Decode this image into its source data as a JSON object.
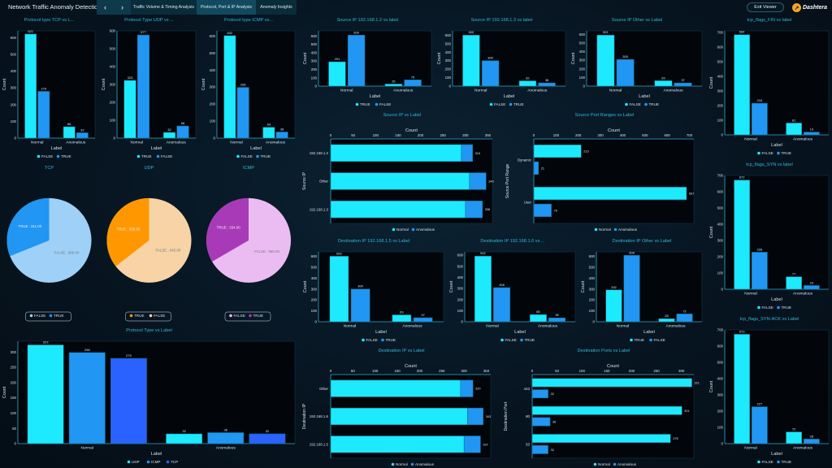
{
  "header": {
    "title": "Network Traffic Anomaly Detection",
    "nav_prev_icon": "chevron-left-icon",
    "nav_next_icon": "chevron-right-icon",
    "tabs": [
      {
        "label": "Traffic Volume & Timing Analysis",
        "active": false
      },
      {
        "label": "Protocol, Port & IP Analysis",
        "active": true
      },
      {
        "label": "Anomaly Insights",
        "active": false
      }
    ],
    "exit_label": "Exit Viewer",
    "logo_text": "Dashtera"
  },
  "colors": {
    "cyan": "#1de9ff",
    "blue": "#2196f3",
    "deep_blue": "#2962ff",
    "title": "#2fb8d6"
  },
  "chart_data": [
    {
      "id": "tcp",
      "type": "bar",
      "title": "Protocol type TCP vs L...",
      "xlabel": "Label",
      "ylabel": "Count",
      "categories": [
        "Normal",
        "Anomalous"
      ],
      "series": [
        {
          "name": "FALSE",
          "values": [
            621,
            68
          ],
          "color": "#1de9ff"
        },
        {
          "name": "TRUE",
          "values": [
            279,
            32
          ],
          "color": "#2196f3"
        }
      ],
      "ylim": [
        0,
        640
      ],
      "ytick_step": 100
    },
    {
      "id": "udp",
      "type": "bar",
      "title": "Protocol Type UDP vs ...",
      "xlabel": "Label",
      "ylabel": "Count",
      "categories": [
        "Normal",
        "Anomalous"
      ],
      "series": [
        {
          "name": "TRUE",
          "values": [
            323,
            32
          ],
          "color": "#1de9ff"
        },
        {
          "name": "FALSE",
          "values": [
            577,
            68
          ],
          "color": "#2196f3"
        }
      ],
      "ylim": [
        0,
        600
      ],
      "ytick_step": 100
    },
    {
      "id": "icmp",
      "type": "bar",
      "title": "Protocol type ICMP vs...",
      "xlabel": "Label",
      "ylabel": "Count",
      "categories": [
        "Normal",
        "Anomalous"
      ],
      "series": [
        {
          "name": "FALSE",
          "values": [
            602,
            64
          ],
          "color": "#1de9ff"
        },
        {
          "name": "TRUE",
          "values": [
            298,
            36
          ],
          "color": "#2196f3"
        }
      ],
      "ylim": [
        0,
        630
      ],
      "ytick_step": 100
    },
    {
      "id": "tcp_pie",
      "type": "pie",
      "title": "TCP",
      "slices": [
        {
          "name": "FALSE",
          "value": 689,
          "label": "FALSE : 689.00",
          "color": "#9fd0f7"
        },
        {
          "name": "TRUE",
          "value": 311,
          "label": "TRUE : 311.00",
          "color": "#2196f3"
        }
      ]
    },
    {
      "id": "udp_pie",
      "type": "pie",
      "title": "UDP",
      "slices": [
        {
          "name": "TRUE",
          "value": 355,
          "label": "TRUE : 355.00",
          "color": "#ff9800"
        },
        {
          "name": "FALSE",
          "value": 645,
          "label": "FALSE : 645.00",
          "color": "#f8d3a5"
        }
      ]
    },
    {
      "id": "icmp_pie",
      "type": "pie",
      "title": "ICMP",
      "slices": [
        {
          "name": "FALSE",
          "value": 666,
          "label": "FALSE : 666.00",
          "color": "#ebbcf2"
        },
        {
          "name": "TRUE",
          "value": 334,
          "label": "TRUE : 334.00",
          "color": "#a83ab8"
        }
      ]
    },
    {
      "id": "proto",
      "type": "bar",
      "title": "Protocol Type vs Label",
      "xlabel": "Label",
      "ylabel": "Count",
      "categories": [
        "Normal",
        "Anomalous"
      ],
      "series": [
        {
          "name": "UDP",
          "values": [
            323,
            32
          ],
          "color": "#1de9ff"
        },
        {
          "name": "ICMP",
          "values": [
            298,
            36
          ],
          "color": "#2196f3"
        },
        {
          "name": "TCP",
          "values": [
            279,
            32
          ],
          "color": "#2962ff"
        }
      ],
      "ylim": [
        0,
        335
      ],
      "ytick_step": 50
    },
    {
      "id": "src12",
      "type": "bar",
      "title": "Source IP 192.168.1.2 vs label",
      "xlabel": "Label",
      "ylabel": "Count",
      "categories": [
        "Normal",
        "Anomalous"
      ],
      "series": [
        {
          "name": "TRUE",
          "values": [
            291,
            25
          ],
          "color": "#1de9ff"
        },
        {
          "name": "FALSE",
          "values": [
            609,
            75
          ],
          "color": "#2196f3"
        }
      ],
      "ylim": [
        0,
        660
      ],
      "ytick_step": 100
    },
    {
      "id": "src13",
      "type": "bar",
      "title": "Source IP 192.168.1.3 vs label",
      "xlabel": "Label",
      "ylabel": "Count",
      "categories": [
        "Normal",
        "Anomalous"
      ],
      "series": [
        {
          "name": "FALSE",
          "values": [
            600,
            62
          ],
          "color": "#1de9ff"
        },
        {
          "name": "TRUE",
          "values": [
            300,
            38
          ],
          "color": "#2196f3"
        }
      ],
      "ylim": [
        0,
        650
      ],
      "ytick_step": 100
    },
    {
      "id": "srcother",
      "type": "bar",
      "title": "Source IP Other vs Label",
      "xlabel": "Label",
      "ylabel": "Count",
      "categories": [
        "Normal",
        "Anomalous"
      ],
      "series": [
        {
          "name": "FALSE",
          "values": [
            591,
            63
          ],
          "color": "#1de9ff"
        },
        {
          "name": "TRUE",
          "values": [
            309,
            37
          ],
          "color": "#2196f3"
        }
      ],
      "ylim": [
        0,
        640
      ],
      "ytick_step": 100
    },
    {
      "id": "srcip",
      "type": "hbar_stacked",
      "title": "Source IP vs Label",
      "xlabel": "Count",
      "ylabel": "Source IP",
      "categories": [
        "192.168.1.2",
        "Other",
        "192.168.1.3"
      ],
      "series": [
        {
          "name": "Normal",
          "values": [
            291,
            309,
            300
          ],
          "color": "#1de9ff"
        },
        {
          "name": "Anomalous",
          "values": [
            25,
            37,
            38
          ],
          "color": "#2196f3"
        }
      ],
      "totals": [
        "316",
        "346",
        "338"
      ],
      "xlim": [
        0,
        360
      ],
      "xtick_step": 50
    },
    {
      "id": "srcport",
      "type": "hbar",
      "title": "Source Port Ranges vs Label",
      "xlabel": "Count",
      "ylabel": "Source Port Range",
      "categories": [
        "Dynamic",
        "User"
      ],
      "series": [
        {
          "name": "Normal",
          "values": [
            213,
            687
          ],
          "color": "#1de9ff"
        },
        {
          "name": "Anomalous",
          "values": [
            21,
            79
          ],
          "color": "#2196f3"
        }
      ],
      "xlim": [
        0,
        720
      ],
      "xtick_step": 100
    },
    {
      "id": "dst15",
      "type": "bar",
      "title": "Destination IP 192.168.1.5 vs Label",
      "xlabel": "Label",
      "ylabel": "Count",
      "categories": [
        "Normal",
        "Anomalous"
      ],
      "series": [
        {
          "name": "FALSE",
          "values": [
            600,
            63
          ],
          "color": "#1de9ff"
        },
        {
          "name": "TRUE",
          "values": [
            300,
            37
          ],
          "color": "#2196f3"
        }
      ],
      "ylim": [
        0,
        640
      ],
      "ytick_step": 100
    },
    {
      "id": "dst16",
      "type": "bar",
      "title": "Destination IP 192.168.1.6 vs ...",
      "xlabel": "Label",
      "ylabel": "Count",
      "categories": [
        "Normal",
        "Anomalous"
      ],
      "series": [
        {
          "name": "FALSE",
          "values": [
            592,
            65
          ],
          "color": "#1de9ff"
        },
        {
          "name": "TRUE",
          "values": [
            308,
            35
          ],
          "color": "#2196f3"
        }
      ],
      "ylim": [
        0,
        630
      ],
      "ytick_step": 100
    },
    {
      "id": "dstother",
      "type": "bar",
      "title": "Destination IP Other vs Label",
      "xlabel": "Label",
      "ylabel": "Count",
      "categories": [
        "Normal",
        "Anomalous"
      ],
      "series": [
        {
          "name": "TRUE",
          "values": [
            292,
            28
          ],
          "color": "#1de9ff"
        },
        {
          "name": "FALSE",
          "values": [
            608,
            72
          ],
          "color": "#2196f3"
        }
      ],
      "ylim": [
        0,
        640
      ],
      "ytick_step": 100
    },
    {
      "id": "dstip",
      "type": "hbar_stacked",
      "title": "Destination IP vs Label",
      "xlabel": "Count",
      "ylabel": "Destination IP",
      "categories": [
        "Other",
        "192.168.1.6",
        "192.168.1.5"
      ],
      "series": [
        {
          "name": "Normal",
          "values": [
            292,
            308,
            300
          ],
          "color": "#1de9ff"
        },
        {
          "name": "Anomalous",
          "values": [
            28,
            35,
            37
          ],
          "color": "#2196f3"
        }
      ],
      "totals": [
        "320",
        "343",
        "337"
      ],
      "xlim": [
        0,
        360
      ],
      "xtick_step": 50
    },
    {
      "id": "dstport",
      "type": "hbar",
      "title": "Destination Ports vs Label",
      "xlabel": "Count",
      "ylabel": "Destination Port",
      "categories": [
        "443",
        "80",
        "53"
      ],
      "series": [
        {
          "name": "Normal",
          "values": [
            321,
            301,
            278
          ],
          "color": "#1de9ff"
        },
        {
          "name": "Anomalous",
          "values": [
            32,
            36,
            32
          ],
          "color": "#2196f3"
        }
      ],
      "xlim": [
        0,
        325
      ],
      "xtick_step": 50
    },
    {
      "id": "fin",
      "type": "bar",
      "title": "tcp_flags_FIN vs label",
      "xlabel": "Label",
      "ylabel": "Count",
      "categories": [
        "Normal",
        "Anomalous"
      ],
      "series": [
        {
          "name": "FALSE",
          "values": [
            684,
            81
          ],
          "color": "#1de9ff"
        },
        {
          "name": "TRUE",
          "values": [
            216,
            19
          ],
          "color": "#2196f3"
        }
      ],
      "ylim": [
        0,
        710
      ],
      "ytick_step": 100
    },
    {
      "id": "syn",
      "type": "bar",
      "title": "tcp_flags_SYN vs label",
      "xlabel": "Label",
      "ylabel": "Count",
      "categories": [
        "Normal",
        "Anomalous"
      ],
      "series": [
        {
          "name": "FALSE",
          "values": [
            672,
            77
          ],
          "color": "#1de9ff"
        },
        {
          "name": "TRUE",
          "values": [
            228,
            23
          ],
          "color": "#2196f3"
        }
      ],
      "ylim": [
        0,
        700
      ],
      "ytick_step": 100
    },
    {
      "id": "synack",
      "type": "bar",
      "title": "tcp_flags_SYN-ACK vs Label",
      "xlabel": "Label",
      "ylabel": "Count",
      "categories": [
        "Normal",
        "Anomalous"
      ],
      "series": [
        {
          "name": "FALSE",
          "values": [
            673,
            72
          ],
          "color": "#1de9ff"
        },
        {
          "name": "TRUE",
          "values": [
            227,
            28
          ],
          "color": "#2196f3"
        }
      ],
      "ylim": [
        0,
        700
      ],
      "ytick_step": 100
    }
  ]
}
